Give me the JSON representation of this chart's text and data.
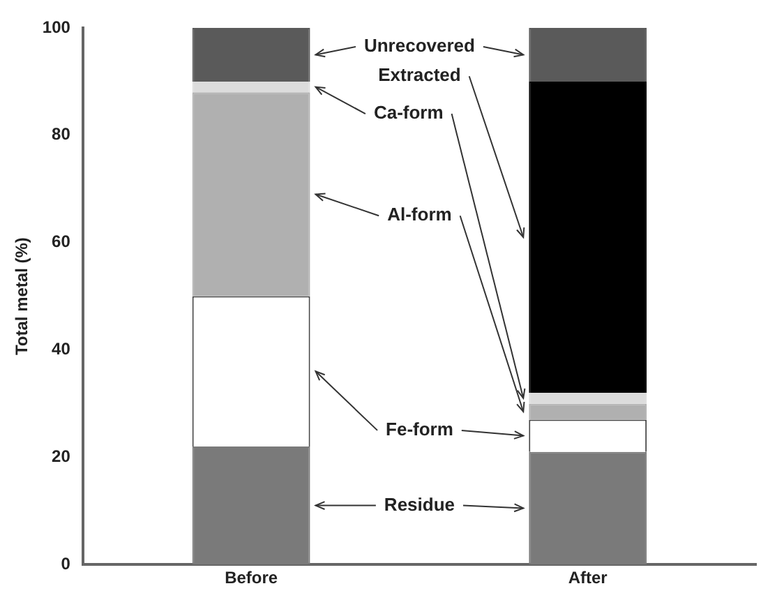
{
  "chart_data": {
    "type": "bar",
    "ylabel": "Total metal (%)",
    "categories": [
      "Before",
      "After"
    ],
    "stacked": true,
    "ylim": [
      0,
      100
    ],
    "yticks": [
      0,
      20,
      40,
      60,
      80,
      100
    ],
    "grid": false,
    "legend": "center",
    "series": [
      {
        "name": "Residue",
        "color": "#7a7a7a",
        "values": [
          22,
          21
        ]
      },
      {
        "name": "Fe-form",
        "color": "#ffffff",
        "values": [
          28,
          6
        ]
      },
      {
        "name": "Al-form",
        "color": "#b0b0b0",
        "values": [
          38,
          3
        ]
      },
      {
        "name": "Ca-form",
        "color": "#dcdcdc",
        "values": [
          2,
          2
        ]
      },
      {
        "name": "Extracted",
        "color": "#000000",
        "values": [
          0,
          58
        ]
      },
      {
        "name": "Unrecovered",
        "color": "#5a5a5a",
        "values": [
          10,
          10
        ]
      }
    ]
  }
}
